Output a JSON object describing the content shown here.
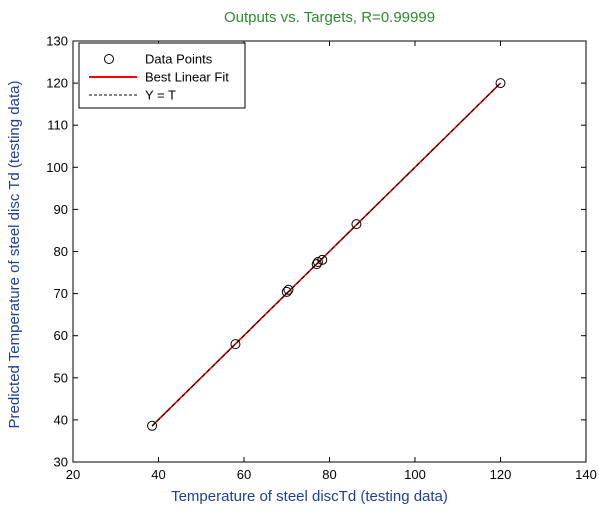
{
  "chart_data": {
    "type": "scatter",
    "title": "Outputs vs. Targets, R=0.99999",
    "xlabel": "Temperature of steel discTd (testing data)",
    "ylabel": "Predicted Temperature of steel disc Td (testing data)",
    "xlim": [
      20,
      140
    ],
    "ylim": [
      30,
      130
    ],
    "xticks": [
      20,
      40,
      60,
      80,
      100,
      120,
      140
    ],
    "yticks": [
      30,
      40,
      50,
      60,
      70,
      80,
      90,
      100,
      110,
      120,
      130
    ],
    "grid": false,
    "legend_position": "top-left",
    "series": [
      {
        "name": "Data Points",
        "kind": "scatter",
        "marker": "open-circle",
        "color": "#000000",
        "points": [
          {
            "x": 38.5,
            "y": 38.6
          },
          {
            "x": 58.0,
            "y": 58.0
          },
          {
            "x": 70.0,
            "y": 70.4
          },
          {
            "x": 70.4,
            "y": 70.9
          },
          {
            "x": 77.0,
            "y": 77.0
          },
          {
            "x": 77.3,
            "y": 77.5
          },
          {
            "x": 78.3,
            "y": 78.0
          },
          {
            "x": 86.3,
            "y": 86.5
          },
          {
            "x": 120.0,
            "y": 120.0
          }
        ]
      },
      {
        "name": "Best Linear Fit",
        "kind": "line",
        "color": "#ff0000",
        "style": "solid",
        "x": [
          38.5,
          120.0
        ],
        "y": [
          38.6,
          120.0
        ]
      },
      {
        "name": "Y = T",
        "kind": "line",
        "color": "#000000",
        "style": "dashed",
        "x": [
          38.5,
          120.0
        ],
        "y": [
          38.5,
          120.0
        ]
      }
    ],
    "colors": {
      "title": "#2e8b2e",
      "axis_label": "#1f3f99",
      "axes": "#000000"
    }
  }
}
